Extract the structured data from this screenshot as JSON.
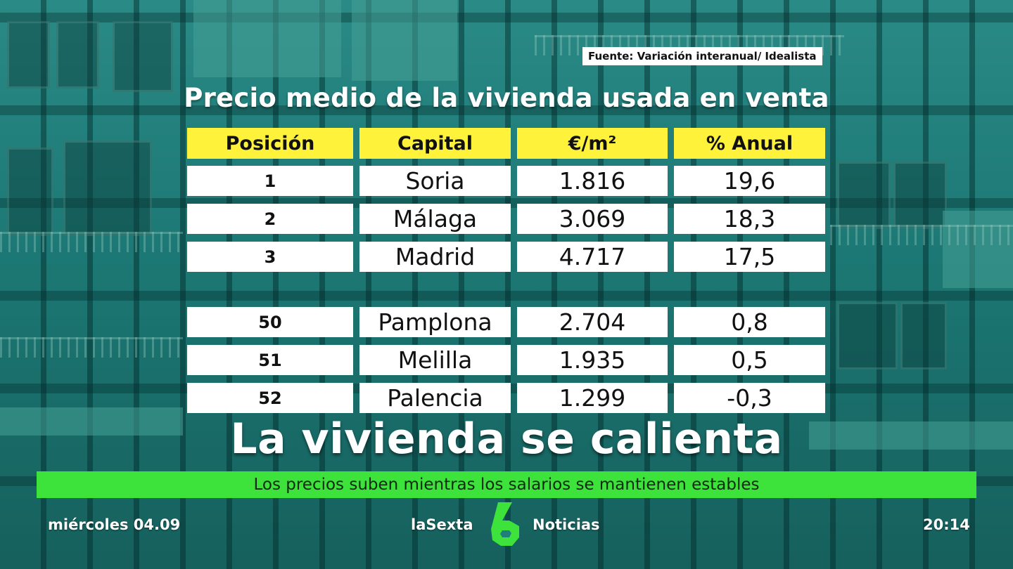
{
  "source_text": "Fuente: Variación interanual/ Idealista",
  "title": "Precio medio de la vivienda usada en venta",
  "table": {
    "headers": [
      "Posición",
      "Capital",
      "€/m²",
      "% Anual"
    ],
    "rows": [
      [
        "1",
        "Soria",
        "1.816",
        "19,6"
      ],
      [
        "2",
        "Málaga",
        "3.069",
        "18,3"
      ],
      [
        "3",
        "Madrid",
        "4.717",
        "17,5"
      ],
      [
        "50",
        "Pamplona",
        "2.704",
        "0,8"
      ],
      [
        "51",
        "Melilla",
        "1.935",
        "0,5"
      ],
      [
        "52",
        "Palencia",
        "1.299",
        "-0,3"
      ]
    ]
  },
  "headline": "La vivienda se calienta",
  "subtitle": "Los precios suben mientras los salarios se mantienen estables",
  "footer": {
    "date": "miércoles 04.09",
    "brand_left": "laSexta",
    "brand_right": "Noticias",
    "time": "20:14"
  },
  "colors": {
    "header_yellow": "#fff23a",
    "subtitle_green": "#3de23a",
    "background_teal": "#1f7f7a"
  },
  "icons": {
    "channel_logo": "lasexta-6-logo"
  }
}
